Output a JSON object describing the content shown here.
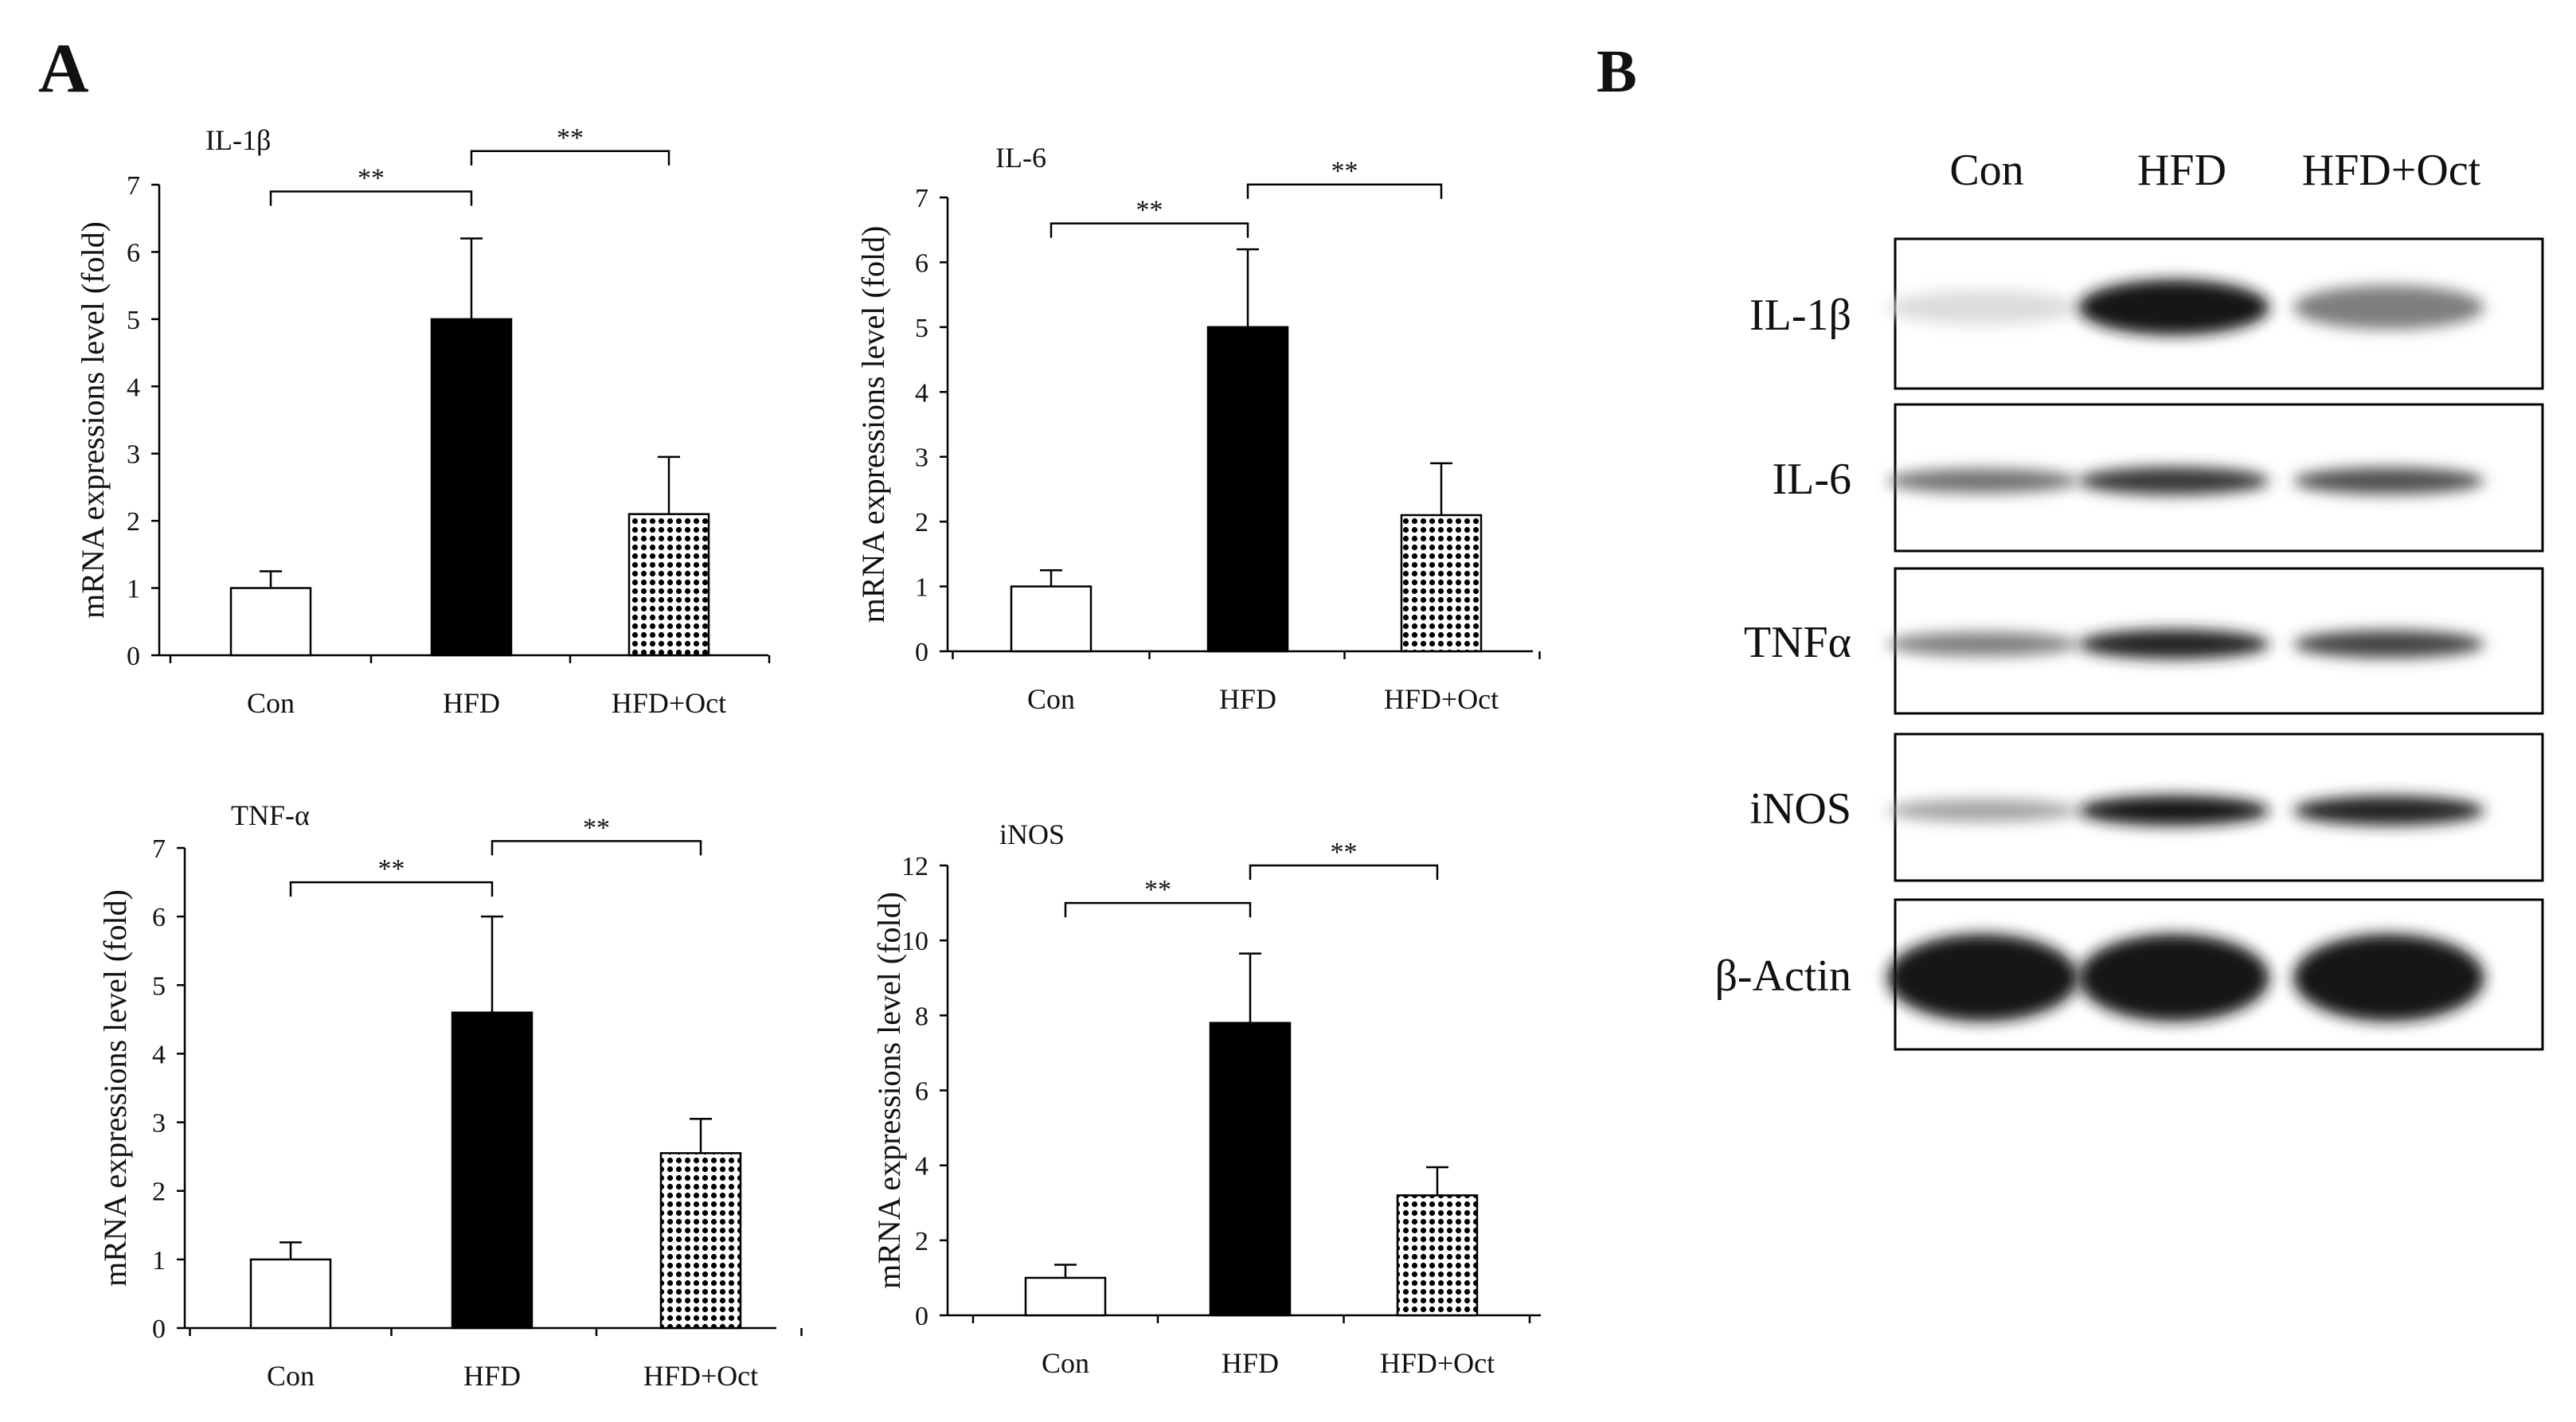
{
  "panel_a_label": "A",
  "panel_b_label": "B",
  "colors": {
    "ink": "#000000",
    "hfd": "#000000",
    "con": "#ffffff",
    "oct_dot": "#000000"
  },
  "chart_data": [
    {
      "type": "bar",
      "title": "IL-1β",
      "ylabel": "mRNA expressions level (fold)",
      "xlabel": "",
      "categories": [
        "Con",
        "HFD",
        "HFD+Oct"
      ],
      "values": [
        1.0,
        5.0,
        2.1
      ],
      "errors": [
        0.25,
        1.2,
        0.85
      ],
      "ylim": [
        0,
        7
      ],
      "yticks": [
        0,
        1,
        2,
        3,
        4,
        5,
        6,
        7
      ],
      "significance": [
        {
          "pair": [
            0,
            1
          ],
          "label": "**",
          "level": 6.9
        },
        {
          "pair": [
            1,
            2
          ],
          "label": "**",
          "level": 7.5
        }
      ]
    },
    {
      "type": "bar",
      "title": "IL-6",
      "ylabel": "mRNA expressions level (fold)",
      "xlabel": "",
      "categories": [
        "Con",
        "HFD",
        "HFD+Oct"
      ],
      "values": [
        1.0,
        5.0,
        2.1
      ],
      "errors": [
        0.25,
        1.2,
        0.8
      ],
      "ylim": [
        0,
        7
      ],
      "yticks": [
        0,
        1,
        2,
        3,
        4,
        5,
        6,
        7
      ],
      "significance": [
        {
          "pair": [
            0,
            1
          ],
          "label": "**",
          "level": 6.6
        },
        {
          "pair": [
            1,
            2
          ],
          "label": "**",
          "level": 7.2
        }
      ]
    },
    {
      "type": "bar",
      "title": "TNF-α",
      "ylabel": "mRNA expressions level (fold)",
      "xlabel": "",
      "categories": [
        "Con",
        "HFD",
        "HFD+Oct"
      ],
      "values": [
        1.0,
        4.6,
        2.55
      ],
      "errors": [
        0.25,
        1.4,
        0.5
      ],
      "ylim": [
        0,
        7
      ],
      "yticks": [
        0,
        1,
        2,
        3,
        4,
        5,
        6,
        7
      ],
      "significance": [
        {
          "pair": [
            0,
            1
          ],
          "label": "**",
          "level": 6.5
        },
        {
          "pair": [
            1,
            2
          ],
          "label": "**",
          "level": 7.1
        }
      ]
    },
    {
      "type": "bar",
      "title": "iNOS",
      "ylabel": "mRNA expressions level (fold)",
      "xlabel": "",
      "categories": [
        "Con",
        "HFD",
        "HFD+Oct"
      ],
      "values": [
        1.0,
        7.8,
        3.2
      ],
      "errors": [
        0.35,
        1.85,
        0.75
      ],
      "ylim": [
        0,
        12
      ],
      "yticks": [
        0,
        2,
        4,
        6,
        8,
        10,
        12
      ],
      "significance": [
        {
          "pair": [
            0,
            1
          ],
          "label": "**",
          "level": 11.0
        },
        {
          "pair": [
            1,
            2
          ],
          "label": "**",
          "level": 12.0
        }
      ]
    }
  ],
  "western_blot": {
    "lanes": [
      "Con",
      "HFD",
      "HFD+Oct"
    ],
    "rows": [
      {
        "label": "IL-1β",
        "intensity": [
          0.15,
          1.0,
          0.55
        ]
      },
      {
        "label": "IL-6",
        "intensity": [
          0.6,
          0.85,
          0.75
        ]
      },
      {
        "label": "TNFα",
        "intensity": [
          0.55,
          0.95,
          0.8
        ]
      },
      {
        "label": "iNOS",
        "intensity": [
          0.4,
          1.0,
          0.95
        ]
      },
      {
        "label": "β-Actin",
        "intensity": [
          1.0,
          1.0,
          1.0
        ]
      }
    ]
  }
}
